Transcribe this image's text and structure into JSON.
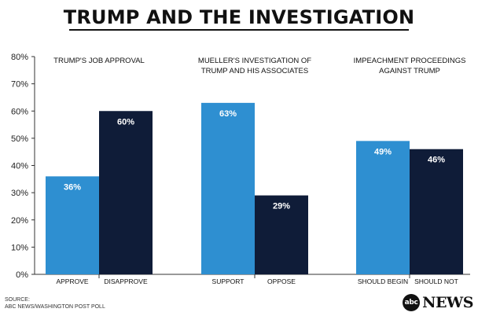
{
  "colors": {
    "blue": "#2e8fd1",
    "navy": "#0f1c38",
    "axis": "#333333"
  },
  "footer": {
    "source_label": "SOURCE:",
    "source_text": "ABC NEWS/WASHINGTON POST POLL"
  },
  "logo": {
    "mark": "abc",
    "word": "NEWS"
  },
  "chart_data": {
    "type": "bar",
    "title": "TRUMP AND THE INVESTIGATION",
    "ylim": [
      0,
      80
    ],
    "yticks": [
      "0%",
      "10%",
      "20%",
      "30%",
      "40%",
      "50%",
      "60%",
      "70%",
      "80%"
    ],
    "grid": false,
    "groups": [
      {
        "label": "TRUMP'S JOB APPROVAL",
        "bars": [
          {
            "category": "APPROVE",
            "value": 36,
            "label": "36%",
            "color": "#2e8fd1"
          },
          {
            "category": "DISAPPROVE",
            "value": 60,
            "label": "60%",
            "color": "#0f1c38"
          }
        ]
      },
      {
        "label": "MUELLER'S INVESTIGATION OF TRUMP AND HIS ASSOCIATES",
        "bars": [
          {
            "category": "SUPPORT",
            "value": 63,
            "label": "63%",
            "color": "#2e8fd1"
          },
          {
            "category": "OPPOSE",
            "value": 29,
            "label": "29%",
            "color": "#0f1c38"
          }
        ]
      },
      {
        "label": "IMPEACHMENT PROCEEDINGS AGAINST TRUMP",
        "bars": [
          {
            "category": "SHOULD BEGIN",
            "value": 49,
            "label": "49%",
            "color": "#2e8fd1"
          },
          {
            "category": "SHOULD NOT",
            "value": 46,
            "label": "46%",
            "color": "#0f1c38"
          }
        ]
      }
    ]
  }
}
